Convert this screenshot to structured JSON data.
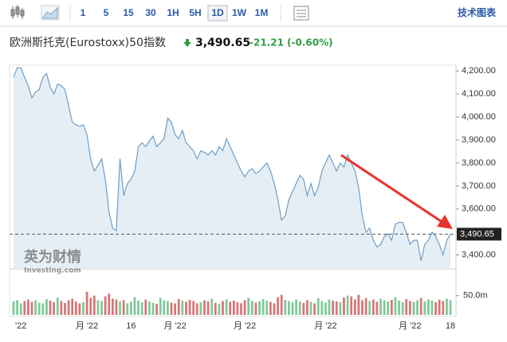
{
  "toolbar": {
    "intervals": [
      "1",
      "5",
      "15",
      "30",
      "1H",
      "5H",
      "1D",
      "1W",
      "1M"
    ],
    "selected": "1D",
    "link": "技术图表"
  },
  "header": {
    "name": "欧洲斯托克(Eurostoxx)50指数",
    "price": "3,490.65",
    "change": "-21.21",
    "change_percent": "(-0.60%)"
  },
  "watermark": {
    "brand": "英为财情",
    "site": "Investing.com"
  },
  "chart_data": [
    {
      "type": "area",
      "color": "#6d9ec7",
      "fill": "#e6eef5",
      "categories": [
        null,
        null,
        "'22",
        null,
        null,
        null,
        null,
        null,
        null,
        null,
        null,
        null,
        null,
        null,
        null,
        null,
        null,
        null,
        null,
        null,
        "月 '22",
        null,
        null,
        null,
        null,
        null,
        null,
        null,
        null,
        null,
        null,
        null,
        "16",
        null,
        null,
        null,
        null,
        null,
        null,
        null,
        null,
        null,
        null,
        null,
        "月 '22",
        null,
        null,
        null,
        null,
        null,
        null,
        null,
        null,
        null,
        null,
        null,
        null,
        null,
        null,
        null,
        null,
        null,
        null,
        "月 '22",
        null,
        null,
        null,
        null,
        null,
        null,
        null,
        null,
        null,
        null,
        null,
        null,
        null,
        null,
        null,
        null,
        null,
        null,
        null,
        null,
        null,
        "月 '22",
        null,
        null,
        null,
        null,
        null,
        null,
        null,
        null,
        null,
        null,
        null,
        null,
        null,
        null,
        null,
        null,
        null,
        null,
        null,
        null,
        null,
        null,
        "月 '22",
        null,
        null,
        null,
        null,
        null,
        null,
        null,
        null,
        null,
        null,
        "18"
      ],
      "values": [
        4172,
        4214,
        4214,
        4172,
        4136,
        4083,
        4108,
        4119,
        4172,
        4189,
        4129,
        4101,
        4143,
        4136,
        4119,
        4048,
        3977,
        3966,
        3959,
        3966,
        3924,
        3818,
        3765,
        3789,
        3818,
        3729,
        3588,
        3517,
        3506,
        3818,
        3658,
        3711,
        3729,
        3765,
        3871,
        3888,
        3871,
        3896,
        3917,
        3871,
        3888,
        3906,
        3995,
        3977,
        3924,
        3906,
        3942,
        3888,
        3871,
        3853,
        3818,
        3853,
        3846,
        3835,
        3853,
        3835,
        3871,
        3853,
        3906,
        3871,
        3835,
        3800,
        3765,
        3740,
        3765,
        3775,
        3754,
        3765,
        3782,
        3800,
        3765,
        3711,
        3641,
        3552,
        3570,
        3641,
        3676,
        3711,
        3747,
        3729,
        3658,
        3711,
        3658,
        3694,
        3765,
        3800,
        3835,
        3800,
        3765,
        3800,
        3782,
        3835,
        3800,
        3765,
        3694,
        3570,
        3499,
        3517,
        3464,
        3435,
        3446,
        3481,
        3492,
        3464,
        3534,
        3542,
        3542,
        3499,
        3446,
        3464,
        3464,
        3375,
        3446,
        3464,
        3499,
        3481,
        3446,
        3400,
        3464,
        3490.65
      ],
      "ylim": [
        3340,
        4225
      ],
      "yticks": [
        {
          "value": 3400,
          "label": "3,400.00"
        },
        {
          "value": 3500,
          "label": "3,500.00"
        },
        {
          "value": 3600,
          "label": "3,600.00"
        },
        {
          "value": 3700,
          "label": "3,700.00"
        },
        {
          "value": 3800,
          "label": "3,800.00"
        },
        {
          "value": 3900,
          "label": "3,900.00"
        },
        {
          "value": 4000,
          "label": "4,000.00"
        },
        {
          "value": 4100,
          "label": "4,100.00"
        },
        {
          "value": 4200,
          "label": "4,200.00"
        }
      ],
      "last_price": {
        "value": 3490.65,
        "label": "3,490.65"
      }
    },
    {
      "type": "bar",
      "up_color": "#7fc99a",
      "down_color": "#d97575",
      "values": [
        35,
        38,
        30,
        36,
        40,
        34,
        38,
        32,
        30,
        41,
        37,
        33,
        45,
        36,
        31,
        38,
        42,
        35,
        30,
        33,
        60,
        44,
        50,
        38,
        36,
        48,
        55,
        42,
        40,
        35,
        38,
        30,
        34,
        46,
        37,
        33,
        40,
        35,
        31,
        29,
        44,
        38,
        36,
        32,
        30,
        41,
        37,
        34,
        39,
        36,
        30,
        33,
        38,
        35,
        42,
        31,
        29,
        36,
        40,
        34,
        37,
        33,
        30,
        38,
        44,
        36,
        32,
        35,
        41,
        37,
        34,
        30,
        46,
        52,
        39,
        36,
        33,
        40,
        35,
        31,
        38,
        34,
        30,
        43,
        36,
        32,
        40,
        37,
        35,
        33,
        45,
        50,
        48,
        40,
        52,
        38,
        44,
        36,
        40,
        34,
        42,
        38,
        35,
        39,
        46,
        37,
        33,
        41,
        36,
        34,
        38,
        44,
        35,
        40,
        37,
        33,
        39,
        36,
        42,
        38
      ],
      "ylim": [
        0,
        115
      ],
      "yticks": [
        {
          "value": 50,
          "label": "50.0m"
        }
      ]
    }
  ]
}
